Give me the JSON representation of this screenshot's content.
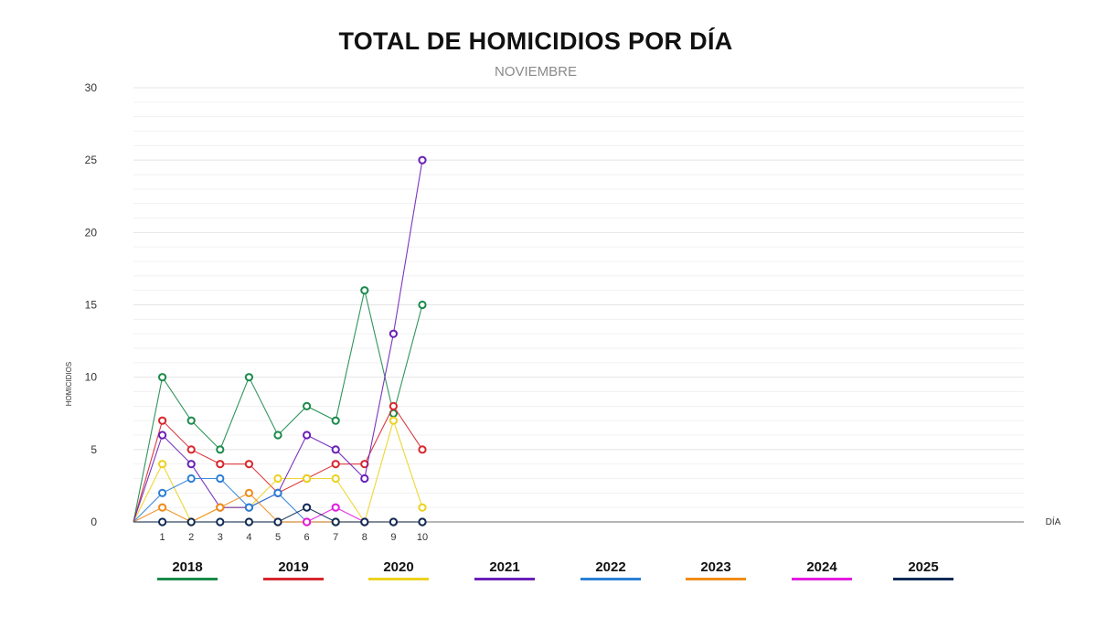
{
  "chart_data": {
    "type": "line",
    "title": "TOTAL DE HOMICIDIOS POR DÍA",
    "subtitle": "NOVIEMBRE",
    "xlabel": "DÍA",
    "ylabel": "HOMICIDIOS",
    "x": [
      1,
      2,
      3,
      4,
      5,
      6,
      7,
      8,
      9,
      10
    ],
    "ylim": [
      0,
      30
    ],
    "yticks": [
      0,
      5,
      10,
      15,
      20,
      25,
      30
    ],
    "grid": true,
    "legend_position": "bottom",
    "series": [
      {
        "name": "2018",
        "color": "#1a8a4a",
        "values": [
          10,
          7,
          5,
          10,
          6,
          8,
          7,
          16,
          7.5,
          15
        ]
      },
      {
        "name": "2019",
        "color": "#d8262c",
        "values": [
          7,
          5,
          4,
          4,
          2,
          3,
          4,
          4,
          8,
          5
        ]
      },
      {
        "name": "2020",
        "color": "#ecd21f",
        "values": [
          4,
          0,
          1,
          1,
          3,
          3,
          3,
          0,
          7,
          1
        ]
      },
      {
        "name": "2021",
        "color": "#6a1fb8",
        "values": [
          6,
          4,
          1,
          1,
          2,
          6,
          5,
          3,
          13,
          25
        ]
      },
      {
        "name": "2022",
        "color": "#2b7fd6",
        "values": [
          2,
          3,
          3,
          1,
          2,
          0,
          0,
          0,
          0,
          0
        ]
      },
      {
        "name": "2023",
        "color": "#f08c1a",
        "values": [
          1,
          0,
          1,
          2,
          0,
          0,
          0,
          0,
          0,
          0
        ]
      },
      {
        "name": "2024",
        "color": "#e21ce0",
        "values": [
          null,
          null,
          null,
          null,
          null,
          0,
          1,
          0,
          null,
          null
        ]
      },
      {
        "name": "2025",
        "color": "#0f2a55",
        "values": [
          0,
          0,
          0,
          0,
          0,
          1,
          0,
          0,
          0,
          0
        ]
      }
    ]
  }
}
